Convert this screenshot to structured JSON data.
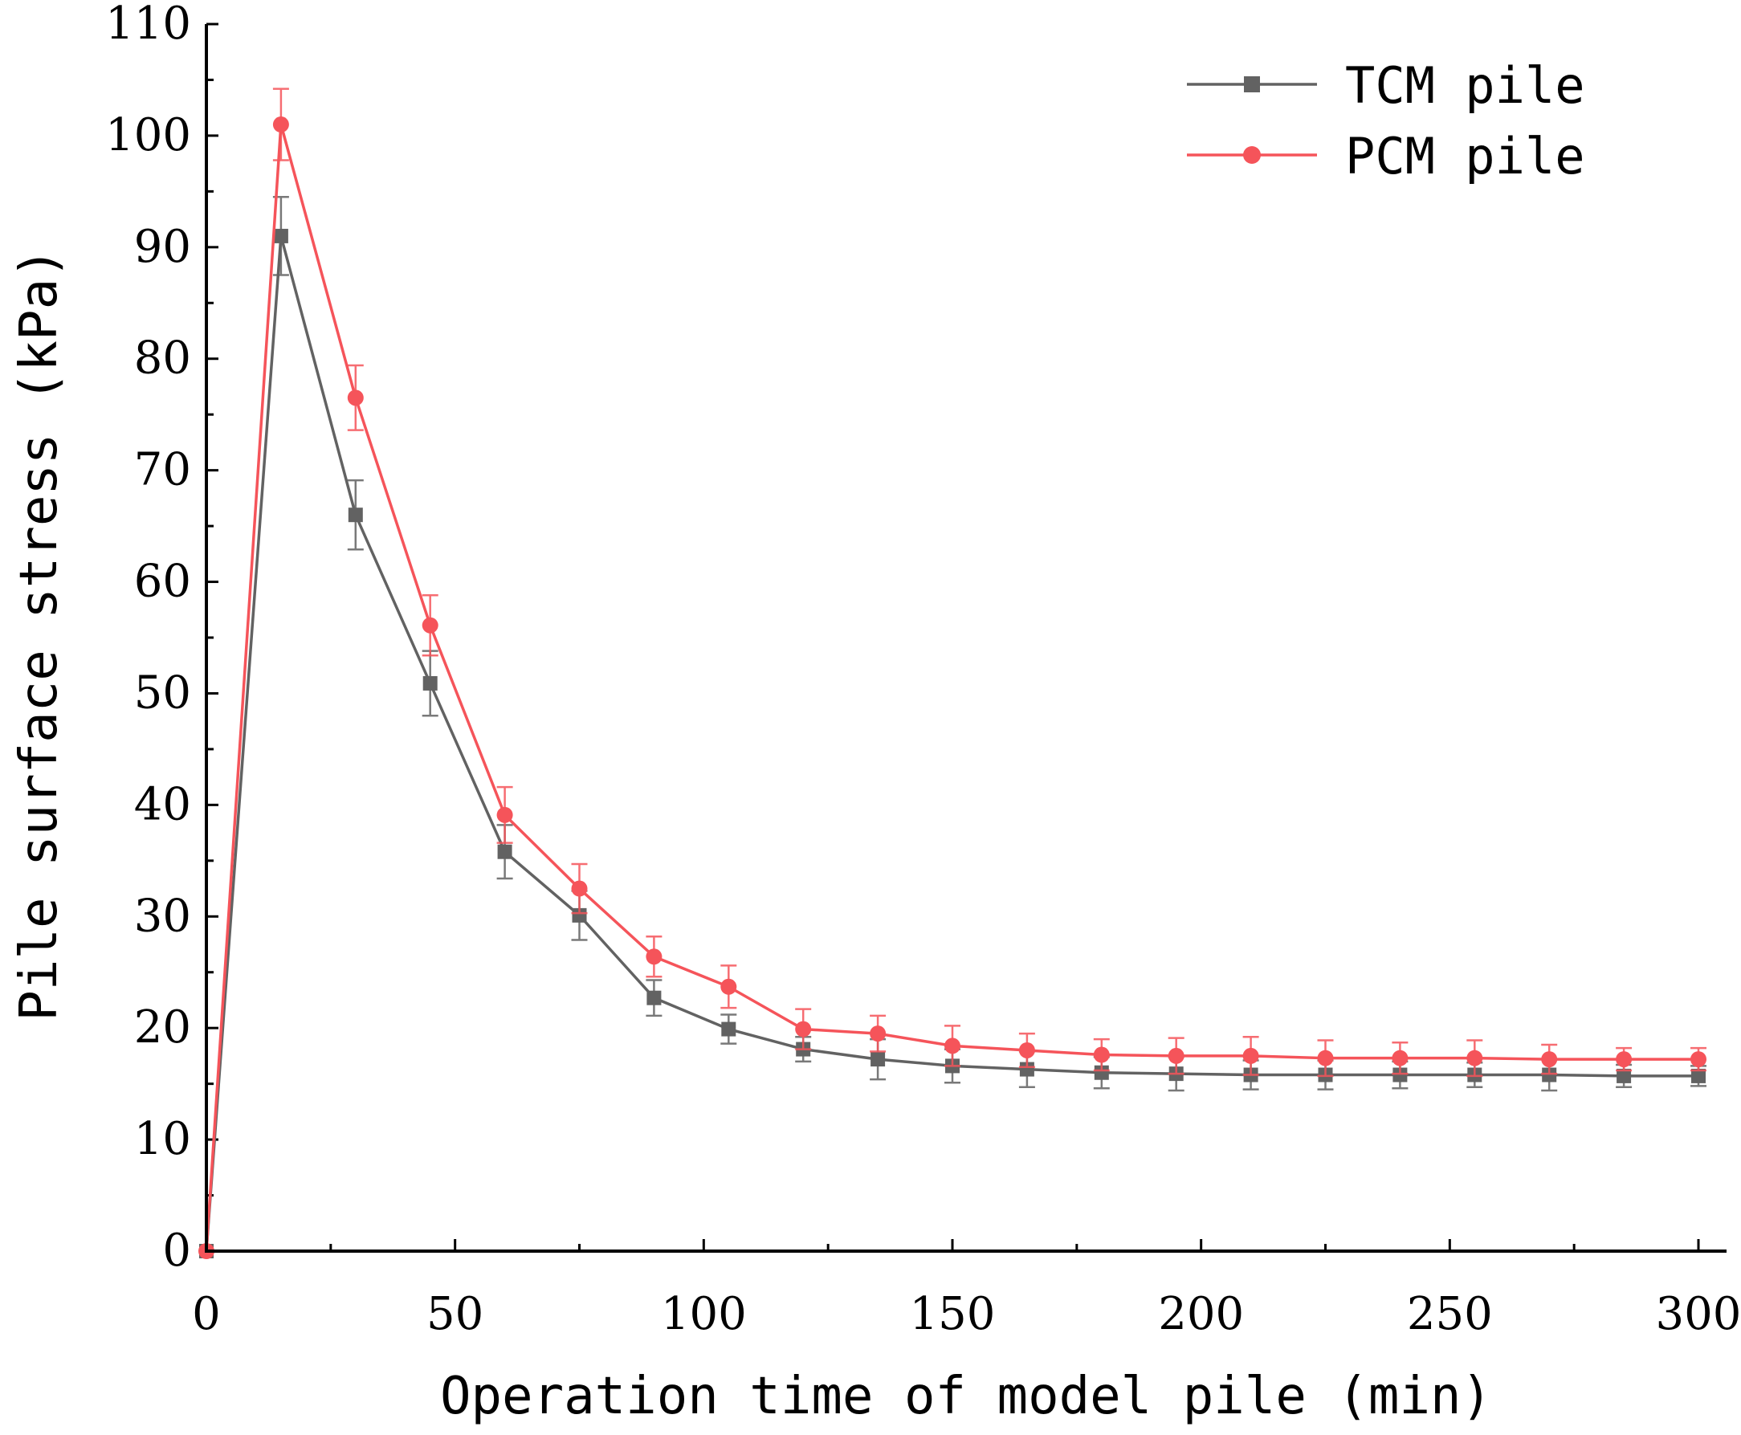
{
  "chart_data": {
    "type": "line",
    "title": "",
    "xlabel": "Operation time of model pile (min)",
    "ylabel": "Pile surface stress (kPa)",
    "xlim": [
      0,
      305
    ],
    "ylim": [
      0,
      110
    ],
    "xticks": [
      0,
      50,
      100,
      150,
      200,
      250,
      300
    ],
    "yticks": [
      0,
      10,
      20,
      30,
      40,
      50,
      60,
      70,
      80,
      90,
      100,
      110
    ],
    "x": [
      0,
      15,
      30,
      45,
      60,
      75,
      90,
      105,
      120,
      135,
      150,
      165,
      180,
      195,
      210,
      225,
      240,
      255,
      270,
      285,
      300
    ],
    "legend_position": "top-right",
    "series": [
      {
        "name": "TCM pile",
        "color": "#626262",
        "marker": "square",
        "values": [
          0,
          91.0,
          66.0,
          50.9,
          35.8,
          30.1,
          22.7,
          19.9,
          18.1,
          17.2,
          16.6,
          16.3,
          16.0,
          15.9,
          15.8,
          15.8,
          15.8,
          15.8,
          15.8,
          15.7,
          15.7
        ],
        "errors": [
          0,
          3.5,
          3.1,
          2.9,
          2.4,
          2.2,
          1.6,
          1.3,
          1.1,
          1.8,
          1.5,
          1.6,
          1.4,
          1.5,
          1.3,
          1.3,
          1.2,
          1.1,
          1.4,
          1.0,
          0.9
        ]
      },
      {
        "name": "PCM pile",
        "color": "#f5545a",
        "marker": "circle",
        "values": [
          0,
          101.0,
          76.5,
          56.1,
          39.1,
          32.5,
          26.4,
          23.7,
          19.9,
          19.5,
          18.4,
          18.0,
          17.6,
          17.5,
          17.5,
          17.3,
          17.3,
          17.3,
          17.2,
          17.2,
          17.2
        ],
        "errors": [
          0,
          3.2,
          2.9,
          2.7,
          2.5,
          2.2,
          1.8,
          1.9,
          1.8,
          1.6,
          1.8,
          1.5,
          1.4,
          1.6,
          1.7,
          1.6,
          1.4,
          1.6,
          1.3,
          1.0,
          1.0
        ]
      }
    ]
  }
}
